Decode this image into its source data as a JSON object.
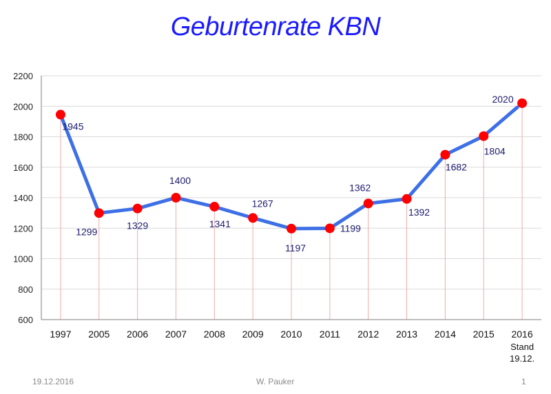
{
  "title": "Geburtenrate KBN",
  "footer": {
    "date": "19.12.2016",
    "author": "W. Pauker",
    "page": "1"
  },
  "colors": {
    "title": "#1a1aff",
    "line": "#3d6fe6",
    "marker": "#ff0000",
    "label": "#1a1a6e",
    "drop_line": "#f2a9a9",
    "grid": "#d9d9d9"
  },
  "chart_data": {
    "type": "line",
    "title": "Geburtenrate KBN",
    "xlabel": "",
    "ylabel": "",
    "ylim": [
      600,
      2200
    ],
    "yticks": [
      600,
      800,
      1000,
      1200,
      1400,
      1600,
      1800,
      2000,
      2200
    ],
    "grid": true,
    "categories": [
      "1997",
      "2005",
      "2006",
      "2007",
      "2008",
      "2009",
      "2010",
      "2011",
      "2012",
      "2013",
      "2014",
      "2015",
      "2016"
    ],
    "category_sublabels": [
      "",
      "",
      "",
      "",
      "",
      "",
      "",
      "",
      "",
      "",
      "",
      "",
      "Stand 19.12."
    ],
    "series": [
      {
        "values": [
          1945,
          1299,
          1329,
          1400,
          1341,
          1267,
          1197,
          1199,
          1362,
          1392,
          1682,
          1804,
          2020
        ]
      }
    ],
    "data_labels": [
      "1945",
      "1299",
      "1329",
      "1400",
      "1341",
      "1267",
      "1197",
      "1199",
      "1362",
      "1392",
      "1682",
      "1804",
      "2020"
    ]
  }
}
